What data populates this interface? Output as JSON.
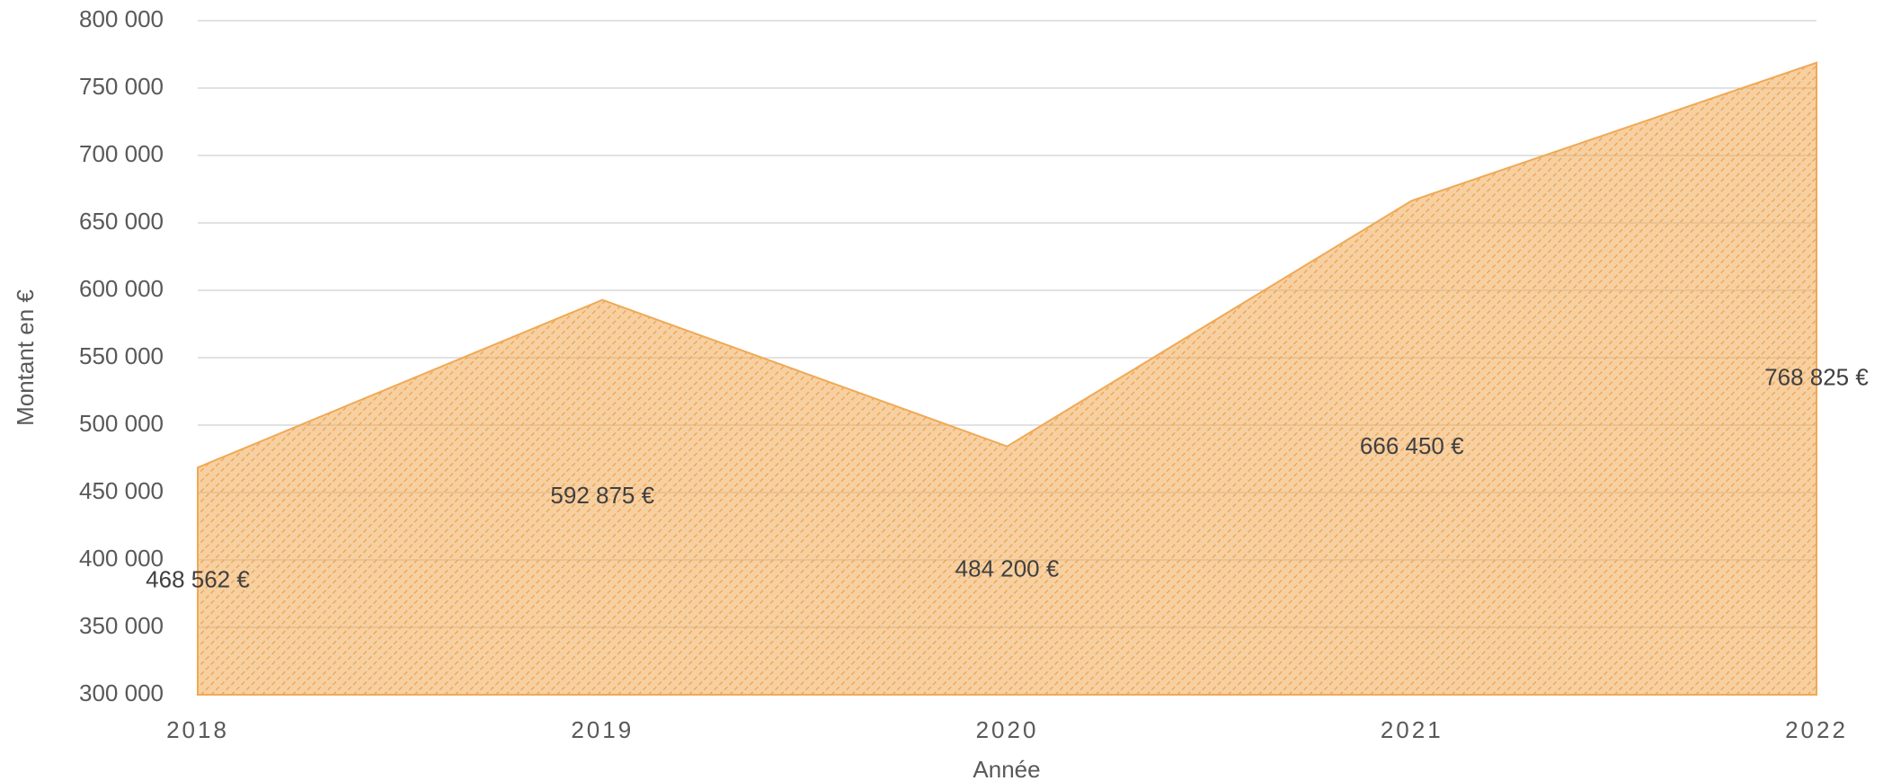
{
  "chart_data": {
    "type": "area",
    "x_label": "Année",
    "y_label": "Montant en €",
    "categories": [
      "2018",
      "2019",
      "2020",
      "2021",
      "2022"
    ],
    "values": [
      468562,
      592875,
      484200,
      666450,
      768825
    ],
    "value_labels": [
      "468 562 €",
      "592 875 €",
      "484 200 €",
      "666 450 €",
      "768 825 €"
    ],
    "color": "#f0a955",
    "ylim": [
      300000,
      800000
    ],
    "yticks": [
      {
        "value": 300000,
        "label": "300 000"
      },
      {
        "value": 350000,
        "label": "350 000"
      },
      {
        "value": 400000,
        "label": "400 000"
      },
      {
        "value": 450000,
        "label": "450 000"
      },
      {
        "value": 500000,
        "label": "500 000"
      },
      {
        "value": 550000,
        "label": "550 000"
      },
      {
        "value": 600000,
        "label": "600 000"
      },
      {
        "value": 650000,
        "label": "650 000"
      },
      {
        "value": 700000,
        "label": "700 000"
      },
      {
        "value": 750000,
        "label": "750 000"
      },
      {
        "value": 800000,
        "label": "800 000"
      }
    ],
    "grid": true
  }
}
